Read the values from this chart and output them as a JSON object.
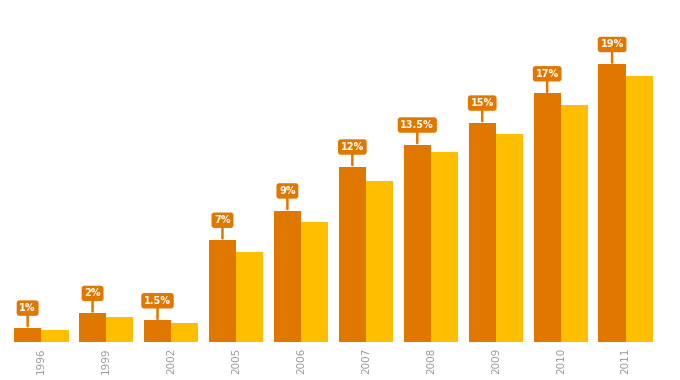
{
  "years": [
    "1996",
    "1999",
    "2002",
    "2005",
    "2006",
    "2007",
    "2008",
    "2009",
    "2010",
    "2011"
  ],
  "values_dark": [
    1.0,
    2.0,
    1.5,
    7.0,
    9.0,
    12.0,
    13.5,
    15.0,
    17.0,
    19.0
  ],
  "values_light": [
    0.85,
    1.7,
    1.3,
    6.2,
    8.2,
    11.0,
    13.0,
    14.2,
    16.2,
    18.2
  ],
  "labels": [
    "1%",
    "2%",
    "1.5%",
    "7%",
    "9%",
    "12%",
    "13.5%",
    "15%",
    "17%",
    "19%"
  ],
  "color_light": "#FFBE00",
  "color_dark": "#E07800",
  "label_bg": "#E07800",
  "label_text": "#FFFFFF",
  "background_color": "#FFFFFF",
  "bar_width": 0.42,
  "ylim_max": 23.0,
  "tick_fontsize": 7.5,
  "label_fontsize": 7.0,
  "xlim_left": -0.55,
  "xlim_right": 9.75
}
